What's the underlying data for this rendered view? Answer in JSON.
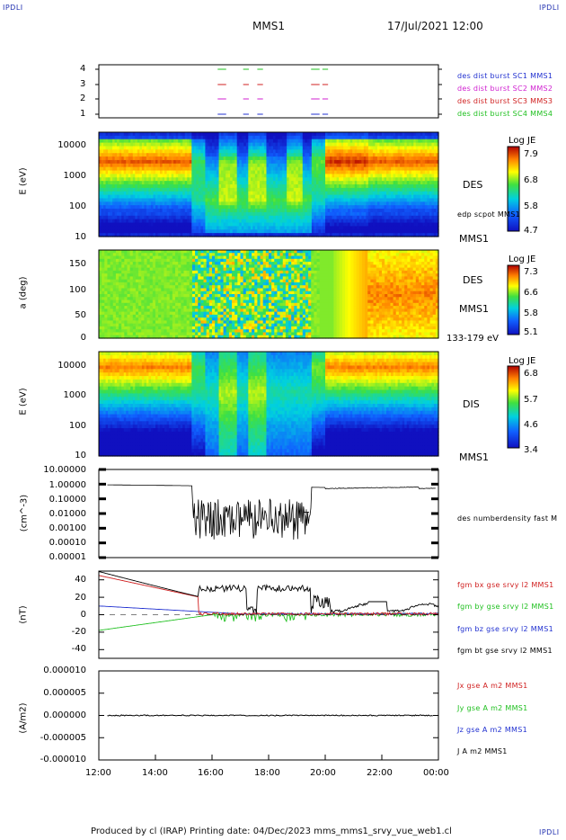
{
  "corners": {
    "top_left": "IPDLI",
    "top_right": "IPDLI",
    "bottom_right": "IPDLI"
  },
  "header": {
    "spacecraft": "MMS1",
    "datetime": "17/Jul/2021 12:00"
  },
  "footer": {
    "text": "Produced by cl (IRAP)   Printing date: 04/Dec/2023   mms_mms1_srvy_vue_web1.cl"
  },
  "colors": {
    "c1": "#2030d0",
    "c2": "#d020d0",
    "c3": "#d02020",
    "c4": "#20c020"
  },
  "chart_data": [
    {
      "type": "scatter",
      "panel": "burst intervals",
      "y_ticks": [
        "4",
        "3",
        "2",
        "1"
      ],
      "legend": [
        {
          "name": "des dist burst SC1 MMS1",
          "color": "#2030d0"
        },
        {
          "name": "des dist burst SC2 MMS2",
          "color": "#d020d0"
        },
        {
          "name": "des dist burst SC3 MMS3",
          "color": "#d02020"
        },
        {
          "name": "des dist burst SC4 MMS4",
          "color": "#20c020"
        }
      ],
      "intervals_hours": [
        [
          16.2,
          16.5
        ],
        [
          17.1,
          17.3
        ],
        [
          17.6,
          17.8
        ],
        [
          19.5,
          19.8
        ],
        [
          19.9,
          20.1
        ]
      ]
    },
    {
      "type": "heatmap",
      "panel": "DES energy",
      "ylabel": "E (eV)",
      "y_ticks": [
        "10000",
        "1000",
        "100",
        "10"
      ],
      "scale": "log",
      "right_labels": {
        "instrument": "DES",
        "overlay": "edp scpot MMS1",
        "spacecraft": "MMS1"
      },
      "colorbar": {
        "title": "Log JE",
        "ticks": [
          "7.9",
          "6.8",
          "5.8",
          "4.7"
        ]
      }
    },
    {
      "type": "heatmap",
      "panel": "DES pitch angle",
      "ylabel": "a (deg)",
      "y_ticks": [
        "150",
        "100",
        "50",
        "0"
      ],
      "right_labels": {
        "instrument": "DES",
        "spacecraft": "MMS1",
        "energy": "133-179 eV"
      },
      "colorbar": {
        "title": "Log JE",
        "ticks": [
          "7.3",
          "6.6",
          "5.8",
          "5.1"
        ]
      }
    },
    {
      "type": "heatmap",
      "panel": "DIS energy",
      "ylabel": "E (eV)",
      "y_ticks": [
        "10000",
        "1000",
        "100",
        "10"
      ],
      "scale": "log",
      "right_labels": {
        "instrument": "DIS",
        "spacecraft": "MMS1"
      },
      "colorbar": {
        "title": "Log JE",
        "ticks": [
          "6.8",
          "5.7",
          "4.6",
          "3.4"
        ]
      }
    },
    {
      "type": "line",
      "panel": "density",
      "ylabel": "(cm^-3)",
      "scale": "log",
      "y_ticks": [
        "10.00000",
        "1.00000",
        "0.10000",
        "0.01000",
        "0.00100",
        "0.00010",
        "0.00001"
      ],
      "series": [
        {
          "name": "des numberdensity fast M",
          "color": "#000000"
        }
      ]
    },
    {
      "type": "line",
      "panel": "magnetic field",
      "ylabel": "(nT)",
      "y_ticks": [
        "40",
        "20",
        "0",
        "-20",
        "-40"
      ],
      "ylim": [
        -50,
        50
      ],
      "series": [
        {
          "name": "fgm bx gse srvy l2 MMS1",
          "color": "#d02020"
        },
        {
          "name": "fgm by gse srvy l2 MMS1",
          "color": "#20c020"
        },
        {
          "name": "fgm bz gse srvy l2 MMS1",
          "color": "#2030d0"
        },
        {
          "name": "fgm bt gse srvy l2 MMS1",
          "color": "#000000"
        }
      ]
    },
    {
      "type": "line",
      "panel": "current density",
      "ylabel": "(A/m2)",
      "y_ticks": [
        "0.000010",
        "0.000005",
        "0.000000",
        "-0.000005",
        "-0.000010"
      ],
      "ylim": [
        -1e-05,
        1e-05
      ],
      "series": [
        {
          "name": "Jx gse A m2 MMS1",
          "color": "#d02020"
        },
        {
          "name": "Jy gse A m2 MMS1",
          "color": "#20c020"
        },
        {
          "name": "Jz gse A m2 MMS1",
          "color": "#2030d0"
        },
        {
          "name": "J A m2 MMS1",
          "color": "#000000"
        }
      ],
      "x_ticks": [
        "12:00",
        "14:00",
        "16:00",
        "18:00",
        "20:00",
        "22:00",
        "00:00"
      ]
    }
  ]
}
